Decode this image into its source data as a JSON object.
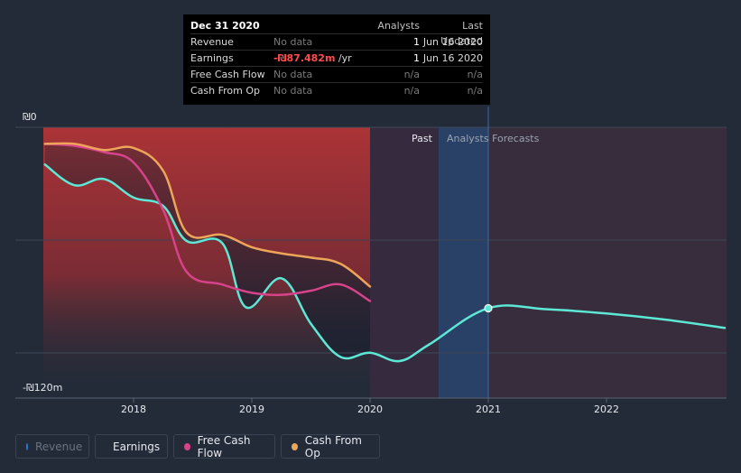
{
  "tooltip": {
    "header": {
      "date": "Dec 31 2020",
      "analysts": "Analysts",
      "updated": "Last Updated"
    },
    "rows": [
      {
        "label": "Revenue",
        "value": "No data",
        "unit": "",
        "analysts": "1",
        "updated": "Jun 16 2020"
      },
      {
        "label": "Earnings",
        "value": "-₪87.482m",
        "unit": " /yr",
        "analysts": "1",
        "updated": "Jun 16 2020"
      },
      {
        "label": "Free Cash Flow",
        "value": "No data",
        "unit": "",
        "analysts": "n/a",
        "updated": "n/a"
      },
      {
        "label": "Cash From Op",
        "value": "No data",
        "unit": "",
        "analysts": "n/a",
        "updated": "n/a"
      }
    ]
  },
  "legend": [
    {
      "label": "Revenue",
      "color": "#2c7bd6",
      "active": false
    },
    {
      "label": "Earnings",
      "color": "#5de8d6",
      "active": true
    },
    {
      "label": "Free Cash Flow",
      "color": "#d6438a",
      "active": true
    },
    {
      "label": "Cash From Op",
      "color": "#eda55a",
      "active": true
    }
  ],
  "labels": {
    "past": "Past",
    "forecast": "Analysts Forecasts"
  },
  "chart_data": {
    "type": "line",
    "title": "",
    "currency": "₪",
    "ylim": [
      -120,
      0
    ],
    "y_tick_labels": [
      "₪0",
      "-₪120m"
    ],
    "xlim": [
      2017.0,
      2023.0
    ],
    "x_ticks": [
      2018,
      2019,
      2020,
      2021,
      2022
    ],
    "x_tick_labels": [
      "2018",
      "2019",
      "2020",
      "2021",
      "2022"
    ],
    "past_end": 2020.0,
    "forecast_start": 2021.0,
    "highlight_range": [
      2020.58,
      2021.0
    ],
    "series": [
      {
        "name": "Earnings",
        "color": "#5de8d6",
        "points": [
          [
            2017.25,
            -18
          ],
          [
            2017.5,
            -28
          ],
          [
            2017.75,
            -25
          ],
          [
            2018.0,
            -34
          ],
          [
            2018.25,
            -38
          ],
          [
            2018.45,
            -55
          ],
          [
            2018.75,
            -56
          ],
          [
            2018.95,
            -87
          ],
          [
            2019.25,
            -73
          ],
          [
            2019.5,
            -95
          ],
          [
            2019.75,
            -111
          ],
          [
            2020.0,
            -109
          ],
          [
            2020.25,
            -113
          ],
          [
            2020.5,
            -105
          ],
          [
            2021.0,
            -87.482
          ],
          [
            2021.5,
            -88
          ],
          [
            2022.0,
            -90
          ],
          [
            2022.5,
            -93
          ],
          [
            2023.0,
            -97
          ]
        ]
      },
      {
        "name": "Free Cash Flow",
        "color": "#d6438a",
        "points": [
          [
            2017.25,
            -8
          ],
          [
            2017.5,
            -9
          ],
          [
            2017.75,
            -12
          ],
          [
            2018.0,
            -17
          ],
          [
            2018.25,
            -40
          ],
          [
            2018.45,
            -70
          ],
          [
            2018.75,
            -76
          ],
          [
            2019.0,
            -80
          ],
          [
            2019.25,
            -81
          ],
          [
            2019.5,
            -79
          ],
          [
            2019.75,
            -76
          ],
          [
            2020.0,
            -84
          ]
        ]
      },
      {
        "name": "Cash From Op",
        "color": "#eda55a",
        "points": [
          [
            2017.25,
            -8
          ],
          [
            2017.5,
            -8
          ],
          [
            2017.75,
            -11
          ],
          [
            2018.0,
            -10
          ],
          [
            2018.25,
            -21
          ],
          [
            2018.45,
            -51
          ],
          [
            2018.75,
            -52
          ],
          [
            2019.0,
            -58
          ],
          [
            2019.25,
            -61
          ],
          [
            2019.5,
            -63
          ],
          [
            2019.75,
            -66
          ],
          [
            2020.0,
            -77
          ]
        ]
      }
    ],
    "markers": [
      {
        "series": "Earnings",
        "x": 2021.0,
        "y": -87.482
      }
    ]
  }
}
